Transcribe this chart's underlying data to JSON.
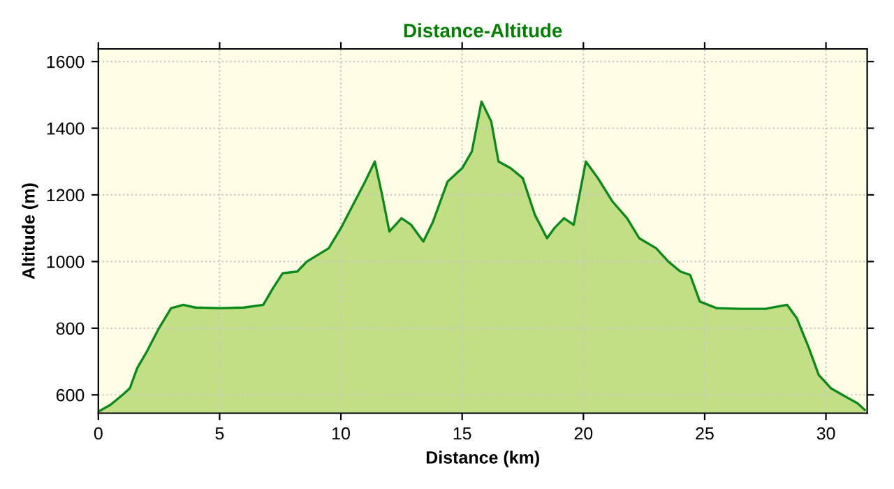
{
  "chart_data": {
    "type": "area",
    "title": "Distance-Altitude",
    "xlabel": "Distance (km)",
    "ylabel": "Altitude (m)",
    "xlim": [
      0,
      31.7
    ],
    "ylim": [
      545,
      1638
    ],
    "xticks": [
      0,
      5,
      10,
      15,
      20,
      25,
      30
    ],
    "yticks": [
      600,
      800,
      1000,
      1200,
      1400,
      1600
    ],
    "grid": true,
    "series": [
      {
        "color": "#0a8a1a",
        "x": [
          0,
          0.5,
          1,
          1.3,
          1.6,
          2,
          2.5,
          3,
          3.5,
          4,
          5,
          6,
          6.8,
          7.2,
          7.6,
          8.2,
          8.6,
          9.5,
          10,
          10.5,
          11,
          11.4,
          11.7,
          12,
          12.5,
          12.9,
          13.4,
          13.8,
          14.4,
          15,
          15.4,
          15.8,
          16.2,
          16.5,
          17,
          17.5,
          18,
          18.5,
          18.8,
          19.2,
          19.6,
          20.1,
          20.6,
          21.2,
          21.8,
          22.3,
          23,
          23.5,
          24,
          24.4,
          24.8,
          25.5,
          26.5,
          27.5,
          28,
          28.4,
          28.8,
          29.3,
          29.7,
          30.2,
          30.8,
          31.3,
          31.6
        ],
        "values": [
          550,
          570,
          600,
          620,
          680,
          730,
          800,
          860,
          870,
          862,
          860,
          862,
          870,
          920,
          965,
          970,
          1000,
          1040,
          1100,
          1170,
          1240,
          1300,
          1200,
          1090,
          1130,
          1110,
          1060,
          1120,
          1240,
          1280,
          1330,
          1480,
          1420,
          1300,
          1280,
          1250,
          1140,
          1070,
          1100,
          1130,
          1110,
          1300,
          1250,
          1180,
          1130,
          1070,
          1040,
          1000,
          970,
          960,
          880,
          860,
          858,
          858,
          865,
          870,
          830,
          740,
          660,
          620,
          595,
          575,
          555
        ]
      }
    ]
  }
}
